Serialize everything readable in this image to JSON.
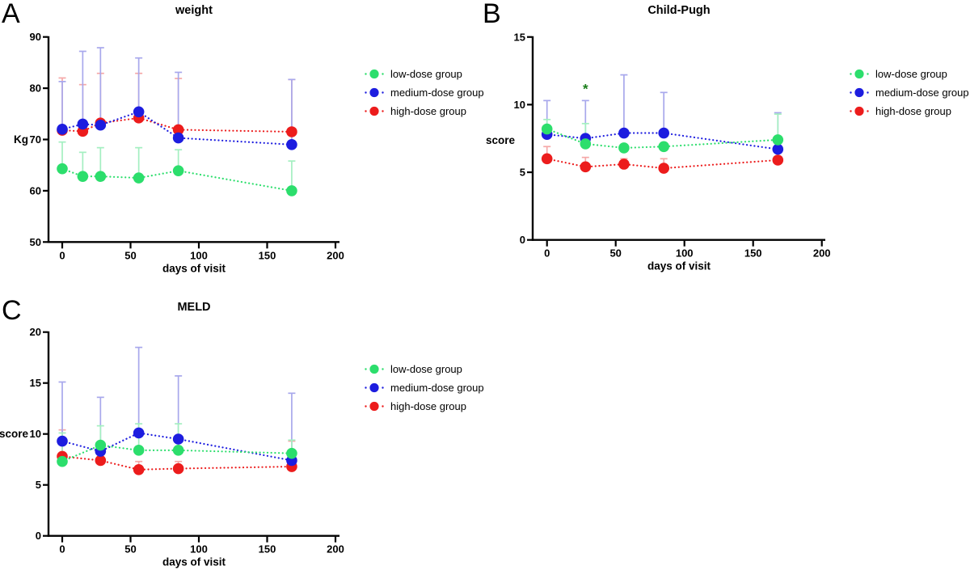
{
  "legend": {
    "items": [
      {
        "label": "low-dose group",
        "color": "#2CDE6C"
      },
      {
        "label": "medium-dose group",
        "color": "#1D1DDF"
      },
      {
        "label": "high-dose group",
        "color": "#EC1C1C"
      }
    ]
  },
  "chart_data": [
    {
      "id": "A",
      "panel_label": "A",
      "type": "line",
      "title": "weight",
      "xlabel": "days of visit",
      "ylabel": "Kg",
      "xlim": [
        -10,
        204
      ],
      "ylim": [
        50,
        90
      ],
      "xticks": [
        0,
        50,
        100,
        150,
        200
      ],
      "yticks": [
        50,
        60,
        70,
        80,
        90
      ],
      "ylabel_at": 70,
      "grid": false,
      "legend_position": "right",
      "x": [
        0,
        15,
        28,
        56,
        85,
        168
      ],
      "series": [
        {
          "name": "low-dose group",
          "color": "#2CDE6C",
          "light": "#A4EFC1",
          "values": [
            64.3,
            62.8,
            62.8,
            62.5,
            63.9,
            60.0
          ],
          "err_top": [
            69.5,
            67.5,
            68.4,
            68.4,
            68.0,
            65.8
          ]
        },
        {
          "name": "medium-dose group",
          "color": "#1D1DDF",
          "light": "#A8A8EC",
          "values": [
            72.0,
            73.0,
            72.8,
            75.4,
            70.3,
            69.0
          ],
          "err_top": [
            81.3,
            87.2,
            87.9,
            85.9,
            83.1,
            81.7
          ]
        },
        {
          "name": "high-dose group",
          "color": "#EC1C1C",
          "light": "#F5A8A8",
          "values": [
            71.8,
            71.6,
            73.2,
            74.2,
            71.9,
            71.5
          ],
          "err_top": [
            82.0,
            80.7,
            82.9,
            82.9,
            81.9,
            81.7
          ]
        }
      ],
      "annotations": []
    },
    {
      "id": "B",
      "panel_label": "B",
      "type": "line",
      "title": "Child-Pugh",
      "xlabel": "days of visit",
      "ylabel": "score",
      "xlim": [
        -10,
        204
      ],
      "ylim": [
        0,
        15
      ],
      "xticks": [
        0,
        50,
        100,
        150,
        200
      ],
      "yticks": [
        0,
        5,
        10,
        15
      ],
      "ylabel_at": 7.35,
      "grid": false,
      "legend_position": "right",
      "x": [
        0,
        28,
        56,
        85,
        168
      ],
      "series": [
        {
          "name": "low-dose group",
          "color": "#2CDE6C",
          "light": "#A4EFC1",
          "values": [
            8.2,
            7.1,
            6.8,
            6.9,
            7.4
          ],
          "err_top": [
            8.9,
            8.6,
            null,
            null,
            9.3
          ]
        },
        {
          "name": "medium-dose group",
          "color": "#1D1DDF",
          "light": "#A8A8EC",
          "values": [
            7.8,
            7.5,
            7.9,
            7.9,
            6.7
          ],
          "err_top": [
            10.3,
            10.3,
            12.2,
            10.9,
            9.4
          ]
        },
        {
          "name": "high-dose group",
          "color": "#EC1C1C",
          "light": "#F5A8A8",
          "values": [
            6.0,
            5.4,
            5.6,
            5.3,
            5.9
          ],
          "err_top": [
            6.9,
            6.1,
            6.0,
            6.0,
            null
          ]
        }
      ],
      "annotations": [
        {
          "text": "*",
          "x": 28,
          "y": 11.15,
          "color": "#1A7E1A"
        }
      ]
    },
    {
      "id": "C",
      "panel_label": "C",
      "type": "line",
      "title": "MELD",
      "xlabel": "days of visit",
      "ylabel": "score",
      "xlim": [
        -10,
        204
      ],
      "ylim": [
        0,
        20
      ],
      "xticks": [
        0,
        50,
        100,
        150,
        200
      ],
      "yticks": [
        0,
        5,
        10,
        15,
        20
      ],
      "ylabel_at": 10,
      "grid": false,
      "legend_position": "right",
      "x": [
        0,
        28,
        56,
        85,
        168
      ],
      "series": [
        {
          "name": "low-dose group",
          "color": "#2CDE6C",
          "light": "#A4EFC1",
          "values": [
            7.3,
            8.9,
            8.4,
            8.4,
            8.1
          ],
          "err_top": [
            10.1,
            10.8,
            11.0,
            11.0,
            9.4
          ]
        },
        {
          "name": "medium-dose group",
          "color": "#1D1DDF",
          "light": "#A8A8EC",
          "values": [
            9.3,
            8.3,
            10.1,
            9.5,
            7.4
          ],
          "err_top": [
            15.1,
            13.6,
            18.5,
            15.7,
            14.0
          ]
        },
        {
          "name": "high-dose group",
          "color": "#EC1C1C",
          "light": "#F5A8A8",
          "values": [
            7.8,
            7.4,
            6.5,
            6.6,
            6.8
          ],
          "err_top": [
            10.4,
            null,
            7.3,
            7.3,
            9.3
          ]
        }
      ],
      "annotations": []
    }
  ]
}
